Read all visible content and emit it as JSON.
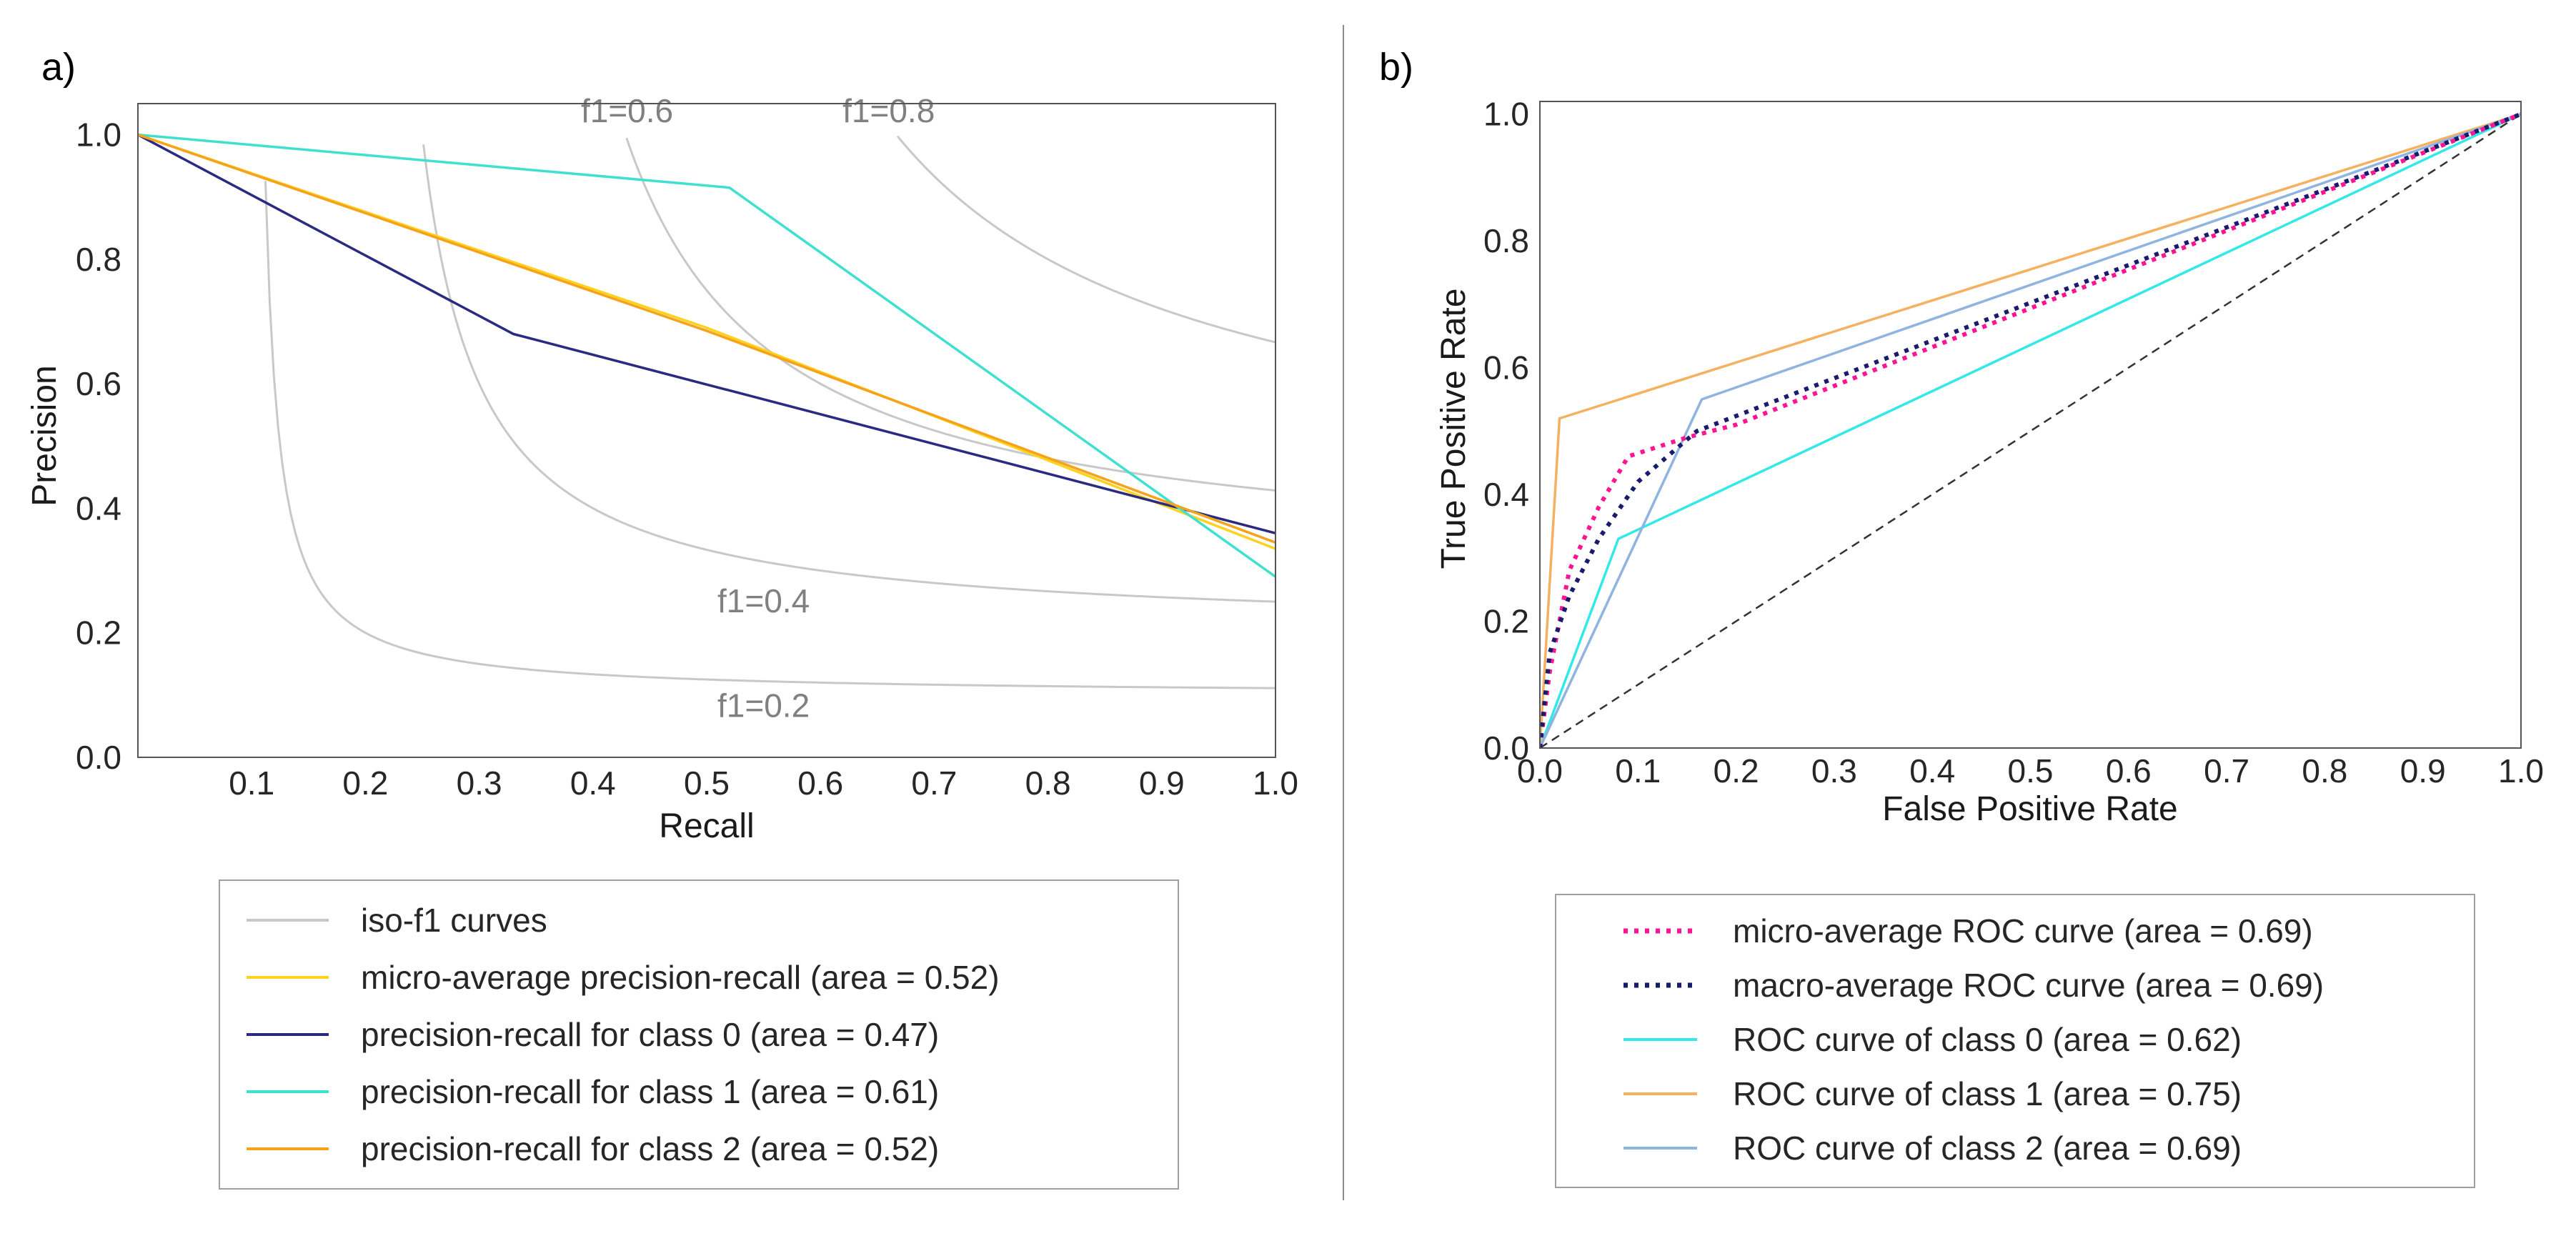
{
  "chart_data": [
    {
      "id": "a",
      "panel_label": "a)",
      "type": "line",
      "xlabel": "Recall",
      "ylabel": "Precision",
      "xlim": [
        0.0,
        1.0
      ],
      "ylim": [
        0.0,
        1.05
      ],
      "xticks": [
        "0.1",
        "0.2",
        "0.3",
        "0.4",
        "0.5",
        "0.6",
        "0.7",
        "0.8",
        "0.9",
        "1.0"
      ],
      "xtick_values": [
        0.1,
        0.2,
        0.3,
        0.4,
        0.5,
        0.6,
        0.7,
        0.8,
        0.9,
        1.0
      ],
      "yticks": [
        "0.0",
        "0.2",
        "0.4",
        "0.6",
        "0.8",
        "1.0"
      ],
      "ytick_values": [
        0.0,
        0.2,
        0.4,
        0.6,
        0.8,
        1.0
      ],
      "grid": false,
      "legend_position": "below",
      "iso_f1": {
        "legend_label": "iso-f1 curves",
        "color": "#c8c8c8",
        "levels": [
          0.2,
          0.4,
          0.6,
          0.8
        ],
        "labels": [
          "f1=0.2",
          "f1=0.4",
          "f1=0.6",
          "f1=0.8"
        ],
        "label_color": "#808080"
      },
      "series": [
        {
          "name": "micro-average precision-recall (area = 0.52)",
          "color": "#ffd21f",
          "dash": "solid",
          "x": [
            0.0,
            0.5,
            1.0
          ],
          "y": [
            1.0,
            0.69,
            0.335
          ]
        },
        {
          "name": "precision-recall for class 0 (area = 0.47)",
          "color": "#2a2a80",
          "dash": "solid",
          "x": [
            0.0,
            0.33,
            1.0
          ],
          "y": [
            1.0,
            0.68,
            0.36
          ]
        },
        {
          "name": "precision-recall for class 1 (area = 0.61)",
          "color": "#40e0d0",
          "dash": "solid",
          "x": [
            0.0,
            0.52,
            1.0
          ],
          "y": [
            1.0,
            0.915,
            0.29
          ]
        },
        {
          "name": "precision-recall for class 2 (area = 0.52)",
          "color": "#f5a31a",
          "dash": "solid",
          "x": [
            0.0,
            0.5,
            1.0
          ],
          "y": [
            1.0,
            0.685,
            0.345
          ]
        }
      ]
    },
    {
      "id": "b",
      "panel_label": "b)",
      "type": "line",
      "xlabel": "False Positive Rate",
      "ylabel": "True Positive Rate",
      "xlim": [
        0.0,
        1.0
      ],
      "ylim": [
        0.0,
        1.02
      ],
      "xticks": [
        "0.0",
        "0.1",
        "0.2",
        "0.3",
        "0.4",
        "0.5",
        "0.6",
        "0.7",
        "0.8",
        "0.9",
        "1.0"
      ],
      "xtick_values": [
        0.0,
        0.1,
        0.2,
        0.3,
        0.4,
        0.5,
        0.6,
        0.7,
        0.8,
        0.9,
        1.0
      ],
      "yticks": [
        "0.0",
        "0.2",
        "0.4",
        "0.6",
        "0.8",
        "1.0"
      ],
      "ytick_values": [
        0.0,
        0.2,
        0.4,
        0.6,
        0.8,
        1.0
      ],
      "grid": false,
      "legend_position": "below",
      "chance_line": {
        "color": "#333333",
        "dash": "dashed",
        "x": [
          0.0,
          1.0
        ],
        "y": [
          0.0,
          1.0
        ]
      },
      "series": [
        {
          "name": "micro-average ROC curve (area = 0.69)",
          "color": "#ff1493",
          "dash": "dotted",
          "x": [
            0.0,
            0.01,
            0.03,
            0.06,
            0.09,
            0.15,
            0.2,
            1.0
          ],
          "y": [
            0.0,
            0.12,
            0.28,
            0.38,
            0.46,
            0.49,
            0.51,
            1.0
          ]
        },
        {
          "name": "macro-average ROC curve (area = 0.69)",
          "color": "#1a1a6e",
          "dash": "dotted",
          "x": [
            0.0,
            0.01,
            0.03,
            0.06,
            0.1,
            0.16,
            1.0
          ],
          "y": [
            0.0,
            0.15,
            0.24,
            0.33,
            0.42,
            0.5,
            1.0
          ]
        },
        {
          "name": "ROC curve of class 0 (area = 0.62)",
          "color": "#33e8e8",
          "dash": "solid",
          "x": [
            0.0,
            0.08,
            1.0
          ],
          "y": [
            0.0,
            0.33,
            1.0
          ]
        },
        {
          "name": "ROC curve of class 1 (area = 0.75)",
          "color": "#f5b060",
          "dash": "solid",
          "x": [
            0.0,
            0.02,
            1.0
          ],
          "y": [
            0.0,
            0.52,
            1.0
          ]
        },
        {
          "name": "ROC curve of class 2 (area = 0.69)",
          "color": "#8fb4e0",
          "dash": "solid",
          "x": [
            0.0,
            0.165,
            1.0
          ],
          "y": [
            0.0,
            0.55,
            1.0
          ]
        }
      ]
    }
  ]
}
